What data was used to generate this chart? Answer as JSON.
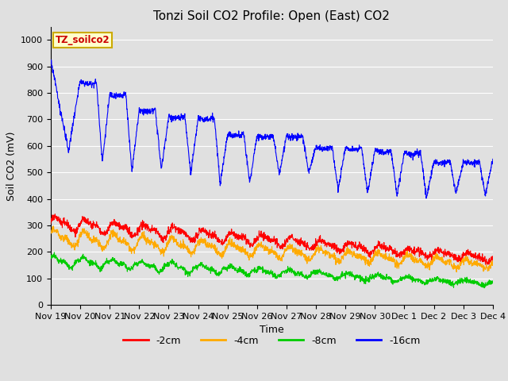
{
  "title": "Tonzi Soil CO2 Profile: Open (East) CO2",
  "ylabel": "Soil CO2 (mV)",
  "xlabel": "Time",
  "annotation": "TZ_soilco2",
  "ylim": [
    0,
    1050
  ],
  "yticks": [
    0,
    100,
    200,
    300,
    400,
    500,
    600,
    700,
    800,
    900,
    1000
  ],
  "colors": {
    "-2cm": "#ff0000",
    "-4cm": "#ffaa00",
    "-8cm": "#00cc00",
    "-16cm": "#0000ff"
  },
  "background_color": "#e0e0e0",
  "plot_bg_color": "#e0e0e0",
  "grid_color": "#ffffff",
  "tick_dates": [
    "Nov 19",
    "Nov 20",
    "Nov 21",
    "Nov 22",
    "Nov 23",
    "Nov 24",
    "Nov 25",
    "Nov 26",
    "Nov 27",
    "Nov 28",
    "Nov 29",
    "Nov 30",
    "Dec 1",
    "Dec 2",
    "Dec 3",
    "Dec 4"
  ],
  "title_fontsize": 11,
  "label_fontsize": 9,
  "tick_fontsize": 8
}
